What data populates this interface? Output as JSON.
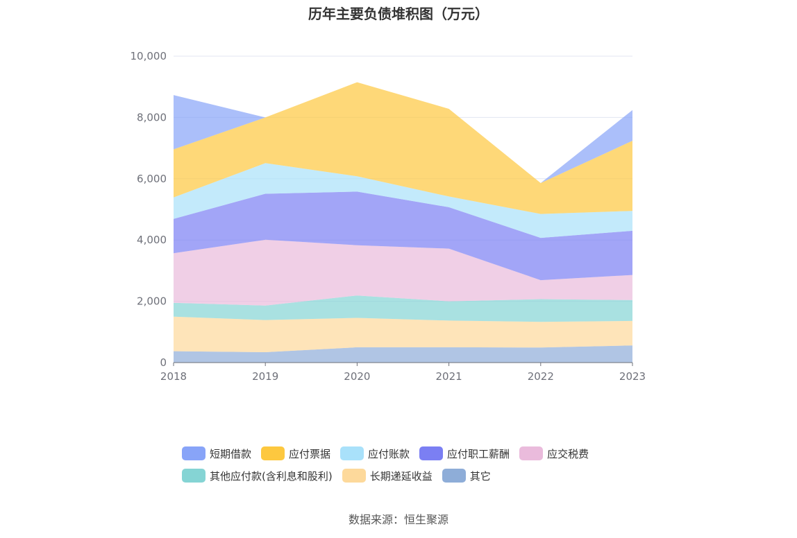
{
  "chart_data": {
    "type": "area",
    "stacked": true,
    "title": "历年主要负债堆积图（万元）",
    "xlabel": "",
    "ylabel": "",
    "categories": [
      "2018",
      "2019",
      "2020",
      "2021",
      "2022",
      "2023"
    ],
    "ylim": [
      0,
      10000
    ],
    "yticks": [
      0,
      2000,
      4000,
      6000,
      8000,
      10000
    ],
    "ytick_labels": [
      "0",
      "2,000",
      "4,000",
      "6,000",
      "8,000",
      "10,000"
    ],
    "grid": true,
    "legend_position": "bottom",
    "series": [
      {
        "name": "其它",
        "color": "#8eadd8",
        "values": [
          370,
          340,
          500,
          500,
          490,
          560
        ]
      },
      {
        "name": "长期递延收益",
        "color": "#fdd99b",
        "values": [
          1130,
          1050,
          960,
          870,
          840,
          800
        ]
      },
      {
        "name": "其他应付款(含利息和股利)",
        "color": "#85d4d4",
        "values": [
          450,
          470,
          730,
          630,
          740,
          680
        ]
      },
      {
        "name": "应交税费",
        "color": "#eabbdc",
        "values": [
          1620,
          2150,
          1640,
          1720,
          620,
          820
        ]
      },
      {
        "name": "应付职工薪酬",
        "color": "#7b7ff3",
        "values": [
          1120,
          1500,
          1750,
          1350,
          1380,
          1440
        ]
      },
      {
        "name": "应付账款",
        "color": "#a9e1fa",
        "values": [
          700,
          1000,
          500,
          350,
          780,
          650
        ]
      },
      {
        "name": "应付票据",
        "color": "#fdc83f",
        "values": [
          1570,
          1490,
          3070,
          2860,
          1010,
          2290
        ]
      },
      {
        "name": "短期借款",
        "color": "#88a4f8",
        "values": [
          1770,
          0,
          0,
          0,
          0,
          1000
        ]
      }
    ]
  },
  "legend_rows": [
    [
      {
        "label": "短期借款",
        "color": "#88a4f8"
      },
      {
        "label": "应付票据",
        "color": "#fdc83f"
      },
      {
        "label": "应付账款",
        "color": "#a9e1fa"
      },
      {
        "label": "应付职工薪酬",
        "color": "#7b7ff3"
      },
      {
        "label": "应交税费",
        "color": "#eabbdc"
      }
    ],
    [
      {
        "label": "其他应付款(含利息和股利)",
        "color": "#85d4d4"
      },
      {
        "label": "长期递延收益",
        "color": "#fdd99b"
      },
      {
        "label": "其它",
        "color": "#8eadd8"
      }
    ]
  ],
  "source": "数据来源：恒生聚源"
}
